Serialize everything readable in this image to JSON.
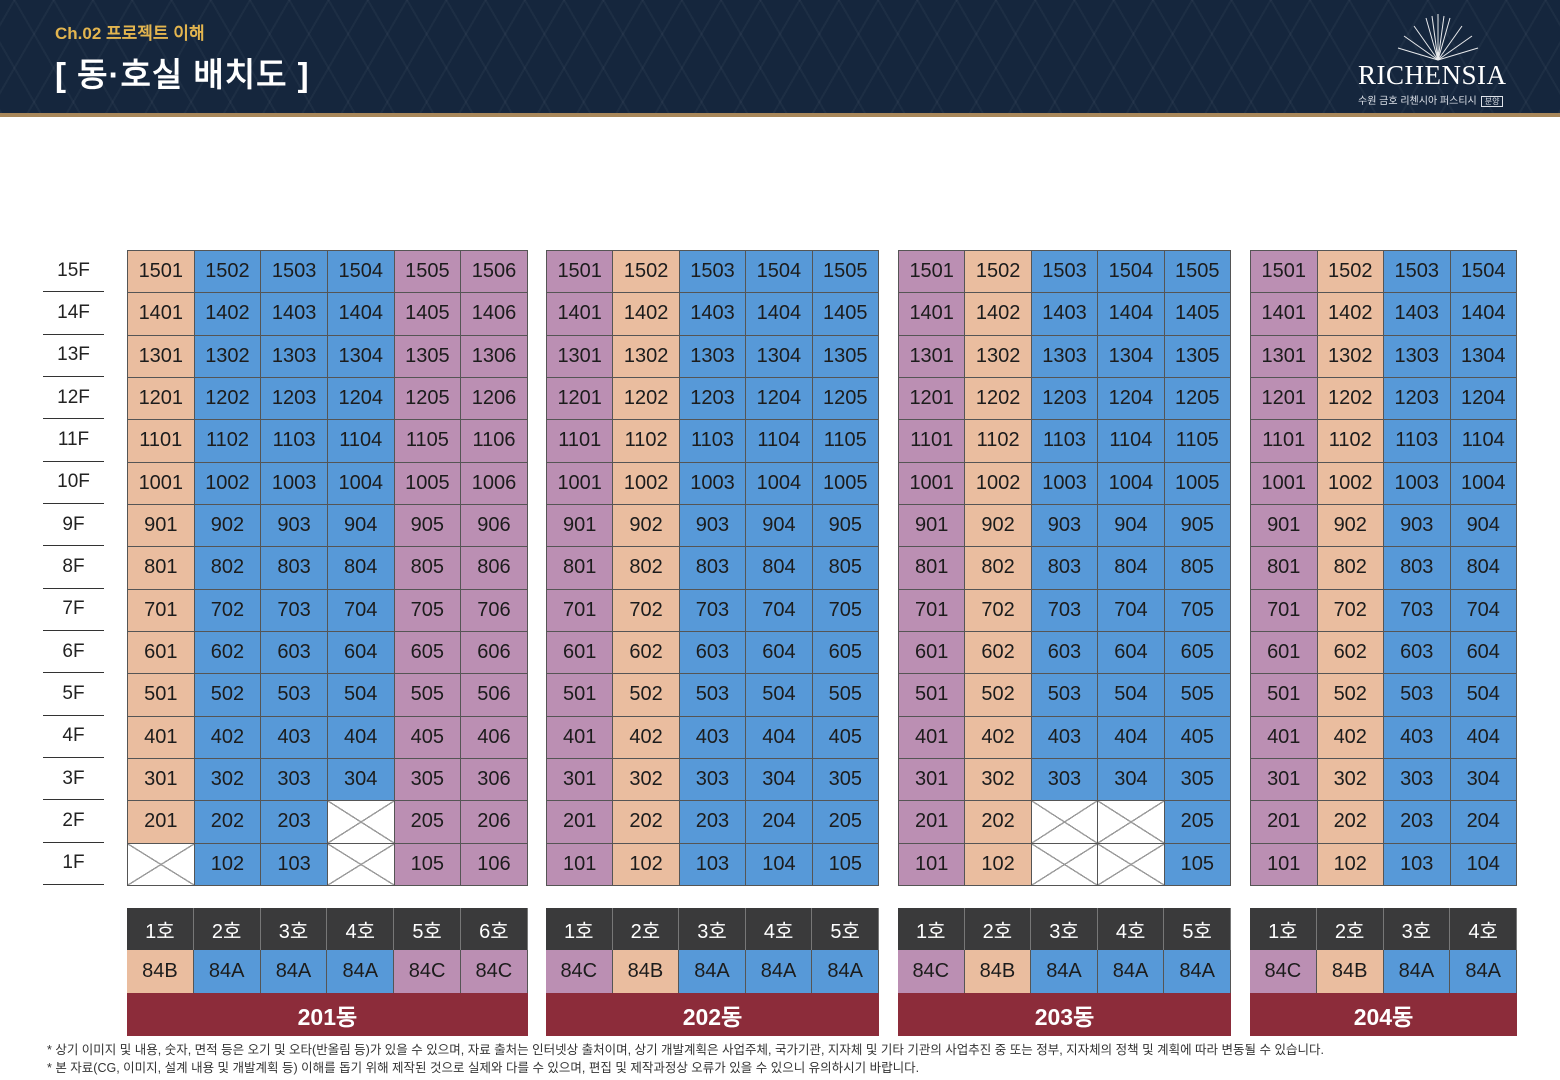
{
  "header": {
    "chapter": "Ch.02 프로젝트 이해",
    "title": "[ 동·호실 배치도 ]",
    "logo_text": "RICHENSIA",
    "logo_sub": "수원 금호 리첸시아 퍼스티시",
    "logo_badge": "분양"
  },
  "colors": {
    "header_bg": "#15263d",
    "header_rule": "#a8875a",
    "chapter_text": "#e3b54f",
    "type_84B": "#eabd9f",
    "type_84A": "#5799d8",
    "type_84C": "#bb8fb3",
    "ho_header": "#3a3a3b",
    "dong_bar": "#8c2c3a"
  },
  "floors": [
    "15F",
    "14F",
    "13F",
    "12F",
    "11F",
    "10F",
    "9F",
    "8F",
    "7F",
    "6F",
    "5F",
    "4F",
    "3F",
    "2F",
    "1F"
  ],
  "buildings": [
    {
      "dong": "201동",
      "units": [
        {
          "ho": "1호",
          "type": "84B",
          "no_unit_floors": [
            1
          ]
        },
        {
          "ho": "2호",
          "type": "84A",
          "no_unit_floors": []
        },
        {
          "ho": "3호",
          "type": "84A",
          "no_unit_floors": []
        },
        {
          "ho": "4호",
          "type": "84A",
          "no_unit_floors": [
            1,
            2
          ]
        },
        {
          "ho": "5호",
          "type": "84C",
          "no_unit_floors": []
        },
        {
          "ho": "6호",
          "type": "84C",
          "no_unit_floors": []
        }
      ]
    },
    {
      "dong": "202동",
      "units": [
        {
          "ho": "1호",
          "type": "84C",
          "no_unit_floors": []
        },
        {
          "ho": "2호",
          "type": "84B",
          "no_unit_floors": []
        },
        {
          "ho": "3호",
          "type": "84A",
          "no_unit_floors": []
        },
        {
          "ho": "4호",
          "type": "84A",
          "no_unit_floors": []
        },
        {
          "ho": "5호",
          "type": "84A",
          "no_unit_floors": []
        }
      ]
    },
    {
      "dong": "203동",
      "units": [
        {
          "ho": "1호",
          "type": "84C",
          "no_unit_floors": []
        },
        {
          "ho": "2호",
          "type": "84B",
          "no_unit_floors": []
        },
        {
          "ho": "3호",
          "type": "84A",
          "no_unit_floors": [
            1,
            2
          ]
        },
        {
          "ho": "4호",
          "type": "84A",
          "no_unit_floors": [
            1,
            2
          ]
        },
        {
          "ho": "5호",
          "type": "84A",
          "no_unit_floors": []
        }
      ]
    },
    {
      "dong": "204동",
      "units": [
        {
          "ho": "1호",
          "type": "84C",
          "no_unit_floors": []
        },
        {
          "ho": "2호",
          "type": "84B",
          "no_unit_floors": []
        },
        {
          "ho": "3호",
          "type": "84A",
          "no_unit_floors": []
        },
        {
          "ho": "4호",
          "type": "84A",
          "no_unit_floors": []
        }
      ]
    }
  ],
  "notes": [
    "* 상기 이미지 및 내용, 숫자, 면적 등은 오기 및 오타(반올림 등)가 있을 수 있으며, 자료 출처는 인터넷상 출처이며, 상기 개발계획은 사업주체, 국가기관, 지자체 및 기타 기관의 사업추진 중 또는 정부, 지자체의 정책 및 계획에 따라 변동될 수 있습니다.",
    "* 본 자료(CG, 이미지, 설계 내용 및 개발계획 등) 이해를 돕기 위해 제작된 것으로 실제와 다를 수 있으며, 편집 및 제작과정상 오류가 있을 수 있으니 유의하시기 바랍니다."
  ]
}
